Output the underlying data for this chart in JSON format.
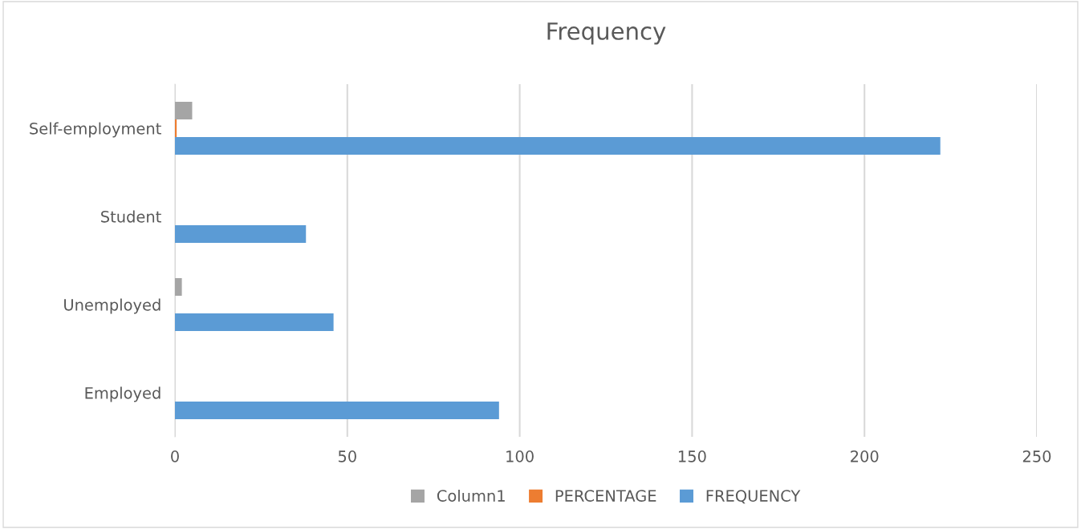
{
  "chart_data": {
    "type": "bar",
    "orientation": "horizontal",
    "title": "Frequency",
    "categories": [
      "Self-employment",
      "Student",
      "Unemployed",
      "Employed"
    ],
    "series": [
      {
        "name": "Column1",
        "color": "#a5a5a5",
        "values": [
          5,
          0,
          2,
          0
        ]
      },
      {
        "name": "PERCENTAGE",
        "color": "#ed7d31",
        "values": [
          0.5,
          0,
          0,
          0
        ]
      },
      {
        "name": "FREQUENCY",
        "color": "#5b9bd5",
        "values": [
          222,
          38,
          46,
          94
        ]
      }
    ],
    "xlim": [
      0,
      250
    ],
    "xticks": [
      0,
      50,
      100,
      150,
      200,
      250
    ],
    "grid": "x",
    "legend": "bottom"
  }
}
